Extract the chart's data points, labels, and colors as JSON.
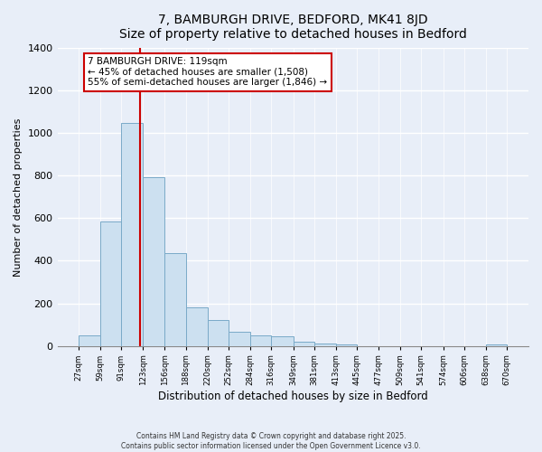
{
  "title": "7, BAMBURGH DRIVE, BEDFORD, MK41 8JD",
  "subtitle": "Size of property relative to detached houses in Bedford",
  "xlabel": "Distribution of detached houses by size in Bedford",
  "ylabel": "Number of detached properties",
  "bar_color": "#cce0f0",
  "bar_edge_color": "#7aaac8",
  "background_color": "#e8eef8",
  "plot_bg_color": "#e8eef8",
  "grid_color": "#ffffff",
  "vline_x": 119,
  "vline_color": "#cc0000",
  "annotation_line1": "7 BAMBURGH DRIVE: 119sqm",
  "annotation_line2": "← 45% of detached houses are smaller (1,508)",
  "annotation_line3": "55% of semi-detached houses are larger (1,846) →",
  "annotation_box_color": "#ffffff",
  "annotation_box_edge": "#cc0000",
  "bin_edges": [
    27,
    59,
    91,
    123,
    156,
    188,
    220,
    252,
    284,
    316,
    349,
    381,
    413,
    445,
    477,
    509,
    541,
    574,
    606,
    638,
    670
  ],
  "bin_counts": [
    50,
    585,
    1050,
    795,
    435,
    180,
    120,
    65,
    50,
    45,
    20,
    10,
    5,
    0,
    0,
    0,
    0,
    0,
    0,
    5
  ],
  "tick_labels": [
    "27sqm",
    "59sqm",
    "91sqm",
    "123sqm",
    "156sqm",
    "188sqm",
    "220sqm",
    "252sqm",
    "284sqm",
    "316sqm",
    "349sqm",
    "381sqm",
    "413sqm",
    "445sqm",
    "477sqm",
    "509sqm",
    "541sqm",
    "574sqm",
    "606sqm",
    "638sqm",
    "670sqm"
  ],
  "ylim": [
    0,
    1400
  ],
  "yticks": [
    0,
    200,
    400,
    600,
    800,
    1000,
    1200,
    1400
  ],
  "footer_line1": "Contains HM Land Registry data © Crown copyright and database right 2025.",
  "footer_line2": "Contains public sector information licensed under the Open Government Licence v3.0."
}
